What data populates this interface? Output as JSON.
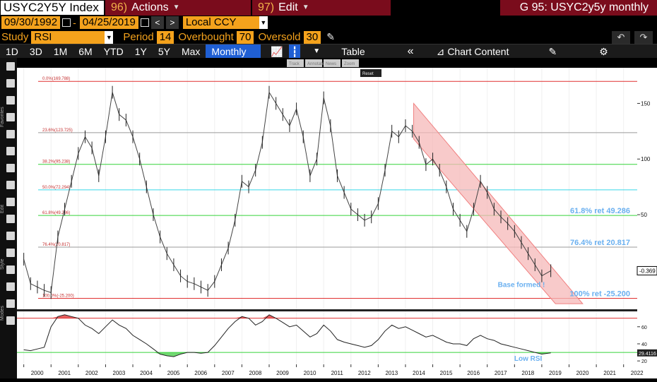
{
  "header": {
    "ticker": "USYC2Y5Y Index",
    "menu_actions_num": "96)",
    "menu_actions": "Actions",
    "menu_edit_num": "97)",
    "menu_edit": "Edit",
    "graph_title": "G 95: USYC2y5y monthly"
  },
  "range": {
    "start": "09/30/1992",
    "sep": "-",
    "end": "04/25/2019",
    "prev": "<",
    "next": ">",
    "currency": "Local CCY"
  },
  "study": {
    "label": "Study",
    "value": "RSI",
    "period_label": "Period",
    "period": "14",
    "overbought_label": "Overbought",
    "overbought": "70",
    "oversold_label": "Oversold",
    "oversold": "30",
    "undo": "↶",
    "redo": "↷"
  },
  "toolbar": {
    "periods": [
      "1D",
      "3D",
      "1M",
      "6M",
      "YTD",
      "1Y",
      "5Y",
      "Max"
    ],
    "frequency": "Monthly ▼",
    "table": "Table",
    "chart_content": "Chart Content",
    "collapse": "«",
    "settings": "⚙"
  },
  "overlay_buttons": [
    "Track",
    "Annotate",
    "News",
    "Zoom",
    "Reset"
  ],
  "side_labels": [
    "Favorites",
    "Edit",
    "Style",
    "Modes"
  ],
  "colors": {
    "price": "#e8e8e8",
    "fib_0": "#e03030",
    "fib_236": "#9a9a9a",
    "fib_382": "#36d43a",
    "fib_50": "#36d6e6",
    "fib_618": "#36d43a",
    "fib_764": "#9a9a9a",
    "fib_100": "#e03030",
    "channel": "#f08080",
    "annotation": "#6ab0f0",
    "rsi_overbought_fill": "#e03a3a",
    "rsi_oversold_fill": "#36c836"
  },
  "chart_data": {
    "type": "line",
    "frequency": "monthly",
    "x_start": 1999.75,
    "x_end": 2022.5,
    "xticks": [
      "2000",
      "2001",
      "2002",
      "2003",
      "2004",
      "2005",
      "2006",
      "2007",
      "2008",
      "2009",
      "2010",
      "2011",
      "2012",
      "2013",
      "2014",
      "2015",
      "2016",
      "2017",
      "2018",
      "2019",
      "2020",
      "2021",
      "2022"
    ],
    "ylim": [
      -35,
      182
    ],
    "yticks": [
      150,
      100,
      50
    ],
    "last_value": "-0.369",
    "fib_levels": [
      {
        "label": "0.0%(169.788)",
        "value": 169.788
      },
      {
        "label": "23.6%(123.725)",
        "value": 123.725
      },
      {
        "label": "38.2%(95.238)",
        "value": 95.238
      },
      {
        "label": "50.0%(72.294)",
        "value": 72.294
      },
      {
        "label": "61.8%(49.286)",
        "value": 49.286
      },
      {
        "label": "76.4%(20.817)",
        "value": 20.817
      },
      {
        "label": "100.0%(-25.200)",
        "value": -25.2
      }
    ],
    "fib_callouts": [
      {
        "text": "61.8% ret 49.286",
        "value": 49.286
      },
      {
        "text": "76.4% ret 20.817",
        "value": 20.817
      },
      {
        "text": "100% ret -25.200",
        "value": -25.2
      }
    ],
    "annotation": "Base formed !",
    "channel": {
      "upper": [
        [
          2014.3,
          150
        ],
        [
          2020.5,
          -30
        ]
      ],
      "lower": [
        [
          2014.3,
          118
        ],
        [
          2019.5,
          -30
        ]
      ]
    },
    "series": [
      {
        "key": "price",
        "x": [
          2000.0,
          2000.25,
          2000.5,
          2000.75,
          2001.0,
          2001.25,
          2001.5,
          2001.75,
          2002.0,
          2002.25,
          2002.5,
          2002.75,
          2003.0,
          2003.25,
          2003.5,
          2003.75,
          2004.0,
          2004.25,
          2004.5,
          2004.75,
          2005.0,
          2005.25,
          2005.5,
          2005.75,
          2006.0,
          2006.25,
          2006.5,
          2006.75,
          2007.0,
          2007.25,
          2007.5,
          2007.75,
          2008.0,
          2008.25,
          2008.5,
          2008.75,
          2009.0,
          2009.25,
          2009.5,
          2009.75,
          2010.0,
          2010.25,
          2010.5,
          2010.75,
          2011.0,
          2011.25,
          2011.5,
          2011.75,
          2012.0,
          2012.25,
          2012.5,
          2012.75,
          2013.0,
          2013.25,
          2013.5,
          2013.75,
          2014.0,
          2014.25,
          2014.5,
          2014.75,
          2015.0,
          2015.25,
          2015.5,
          2015.75,
          2016.0,
          2016.25,
          2016.5,
          2016.75,
          2017.0,
          2017.25,
          2017.5,
          2017.75,
          2018.0,
          2018.25,
          2018.5,
          2018.75,
          2019.0,
          2019.33
        ],
        "values": [
          10,
          -12,
          -15,
          -18,
          -20,
          30,
          55,
          80,
          105,
          120,
          110,
          85,
          120,
          160,
          140,
          135,
          120,
          100,
          75,
          50,
          30,
          15,
          5,
          -5,
          -10,
          -12,
          -15,
          -18,
          -10,
          5,
          20,
          45,
          80,
          75,
          90,
          115,
          160,
          150,
          140,
          130,
          145,
          120,
          85,
          100,
          155,
          130,
          85,
          70,
          55,
          50,
          45,
          48,
          60,
          90,
          125,
          120,
          130,
          125,
          115,
          95,
          100,
          90,
          75,
          55,
          45,
          35,
          55,
          80,
          70,
          55,
          48,
          42,
          35,
          25,
          15,
          5,
          -5,
          -0.369
        ]
      }
    ],
    "rsi": {
      "ylim": [
        16,
        78
      ],
      "yticks": [
        60,
        40,
        20
      ],
      "last_value": "29.4116",
      "label": "Low RSI",
      "overbought": 70,
      "oversold": 30,
      "x": [
        2000.0,
        2000.25,
        2000.5,
        2000.75,
        2001.0,
        2001.25,
        2001.5,
        2001.75,
        2002.0,
        2002.25,
        2002.5,
        2002.75,
        2003.0,
        2003.25,
        2003.5,
        2003.75,
        2004.0,
        2004.25,
        2004.5,
        2004.75,
        2005.0,
        2005.25,
        2005.5,
        2005.75,
        2006.0,
        2006.25,
        2006.5,
        2006.75,
        2007.0,
        2007.25,
        2007.5,
        2007.75,
        2008.0,
        2008.25,
        2008.5,
        2008.75,
        2009.0,
        2009.25,
        2009.5,
        2009.75,
        2010.0,
        2010.25,
        2010.5,
        2010.75,
        2011.0,
        2011.25,
        2011.5,
        2011.75,
        2012.0,
        2012.25,
        2012.5,
        2012.75,
        2013.0,
        2013.25,
        2013.5,
        2013.75,
        2014.0,
        2014.25,
        2014.5,
        2014.75,
        2015.0,
        2015.25,
        2015.5,
        2015.75,
        2016.0,
        2016.25,
        2016.5,
        2016.75,
        2017.0,
        2017.25,
        2017.5,
        2017.75,
        2018.0,
        2018.25,
        2018.5,
        2018.75,
        2019.0,
        2019.33
      ],
      "values": [
        33,
        32,
        34,
        36,
        60,
        72,
        74,
        72,
        70,
        62,
        58,
        52,
        60,
        68,
        62,
        58,
        50,
        45,
        40,
        34,
        28,
        26,
        25,
        28,
        30,
        30,
        29,
        30,
        38,
        48,
        58,
        66,
        72,
        70,
        62,
        66,
        74,
        70,
        65,
        60,
        62,
        55,
        48,
        52,
        62,
        55,
        45,
        42,
        40,
        38,
        36,
        38,
        45,
        55,
        62,
        58,
        60,
        56,
        52,
        48,
        50,
        46,
        42,
        40,
        40,
        38,
        46,
        50,
        46,
        44,
        40,
        38,
        36,
        34,
        32,
        30,
        28,
        29.4
      ]
    }
  }
}
